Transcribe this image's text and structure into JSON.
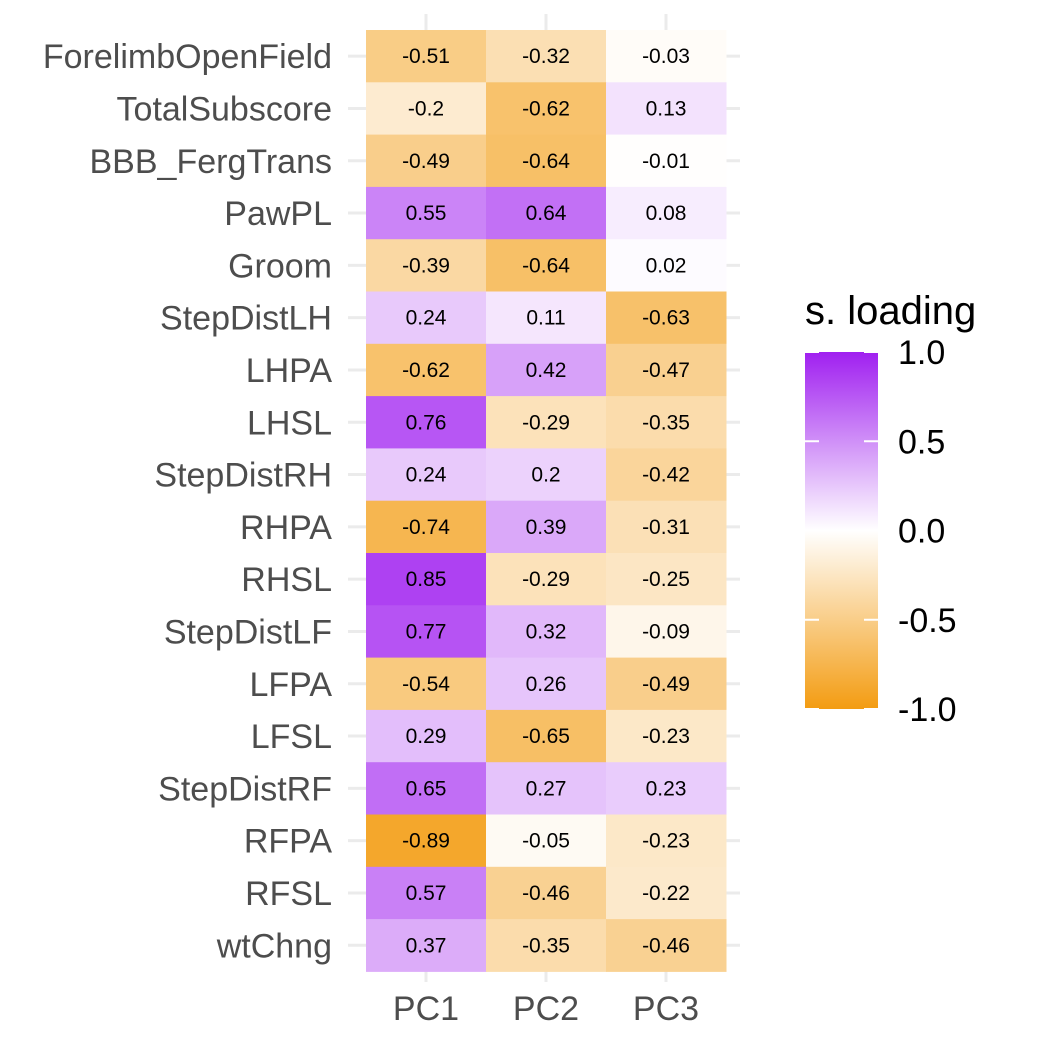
{
  "chart_data": {
    "type": "heatmap",
    "title": "",
    "xlabel": "",
    "ylabel": "",
    "columns": [
      "PC1",
      "PC2",
      "PC3"
    ],
    "rows": [
      {
        "label": "ForelimbOpenField",
        "values": [
          -0.51,
          -0.32,
          -0.03
        ],
        "text": [
          "-0.51",
          "-0.32",
          "-0.03"
        ]
      },
      {
        "label": "TotalSubscore",
        "values": [
          -0.2,
          -0.62,
          0.13
        ],
        "text": [
          "-0.2",
          "-0.62",
          "0.13"
        ]
      },
      {
        "label": "BBB_FergTrans",
        "values": [
          -0.49,
          -0.64,
          -0.01
        ],
        "text": [
          "-0.49",
          "-0.64",
          "-0.01"
        ]
      },
      {
        "label": "PawPL",
        "values": [
          0.55,
          0.64,
          0.08
        ],
        "text": [
          "0.55",
          "0.64",
          "0.08"
        ]
      },
      {
        "label": "Groom",
        "values": [
          -0.39,
          -0.64,
          0.02
        ],
        "text": [
          "-0.39",
          "-0.64",
          "0.02"
        ]
      },
      {
        "label": "StepDistLH",
        "values": [
          0.24,
          0.11,
          -0.63
        ],
        "text": [
          "0.24",
          "0.11",
          "-0.63"
        ]
      },
      {
        "label": "LHPA",
        "values": [
          -0.62,
          0.42,
          -0.47
        ],
        "text": [
          "-0.62",
          "0.42",
          "-0.47"
        ]
      },
      {
        "label": "LHSL",
        "values": [
          0.76,
          -0.29,
          -0.35
        ],
        "text": [
          "0.76",
          "-0.29",
          "-0.35"
        ]
      },
      {
        "label": "StepDistRH",
        "values": [
          0.24,
          0.2,
          -0.42
        ],
        "text": [
          "0.24",
          "0.2",
          "-0.42"
        ]
      },
      {
        "label": "RHPA",
        "values": [
          -0.74,
          0.39,
          -0.31
        ],
        "text": [
          "-0.74",
          "0.39",
          "-0.31"
        ]
      },
      {
        "label": "RHSL",
        "values": [
          0.85,
          -0.29,
          -0.25
        ],
        "text": [
          "0.85",
          "-0.29",
          "-0.25"
        ]
      },
      {
        "label": "StepDistLF",
        "values": [
          0.77,
          0.32,
          -0.09
        ],
        "text": [
          "0.77",
          "0.32",
          "-0.09"
        ]
      },
      {
        "label": "LFPA",
        "values": [
          -0.54,
          0.26,
          -0.49
        ],
        "text": [
          "-0.54",
          "0.26",
          "-0.49"
        ]
      },
      {
        "label": "LFSL",
        "values": [
          0.29,
          -0.65,
          -0.23
        ],
        "text": [
          "0.29",
          "-0.65",
          "-0.23"
        ]
      },
      {
        "label": "StepDistRF",
        "values": [
          0.65,
          0.27,
          0.23
        ],
        "text": [
          "0.65",
          "0.27",
          "0.23"
        ]
      },
      {
        "label": "RFPA",
        "values": [
          -0.89,
          -0.05,
          -0.23
        ],
        "text": [
          "-0.89",
          "-0.05",
          "-0.23"
        ]
      },
      {
        "label": "RFSL",
        "values": [
          0.57,
          -0.46,
          -0.22
        ],
        "text": [
          "0.57",
          "-0.46",
          "-0.22"
        ]
      },
      {
        "label": "wtChng",
        "values": [
          0.37,
          -0.35,
          -0.46
        ],
        "text": [
          "0.37",
          "-0.35",
          "-0.46"
        ]
      }
    ],
    "color_scale": {
      "low": "#f39c12",
      "mid": "#ffffff",
      "high": "#a020f0",
      "limits": [
        -1.0,
        1.0
      ]
    },
    "legend": {
      "title": "s. loading",
      "ticks": [
        "1.0",
        "0.5",
        "0.0",
        "-0.5",
        "-1.0"
      ],
      "placement": "right"
    },
    "grid": true
  }
}
